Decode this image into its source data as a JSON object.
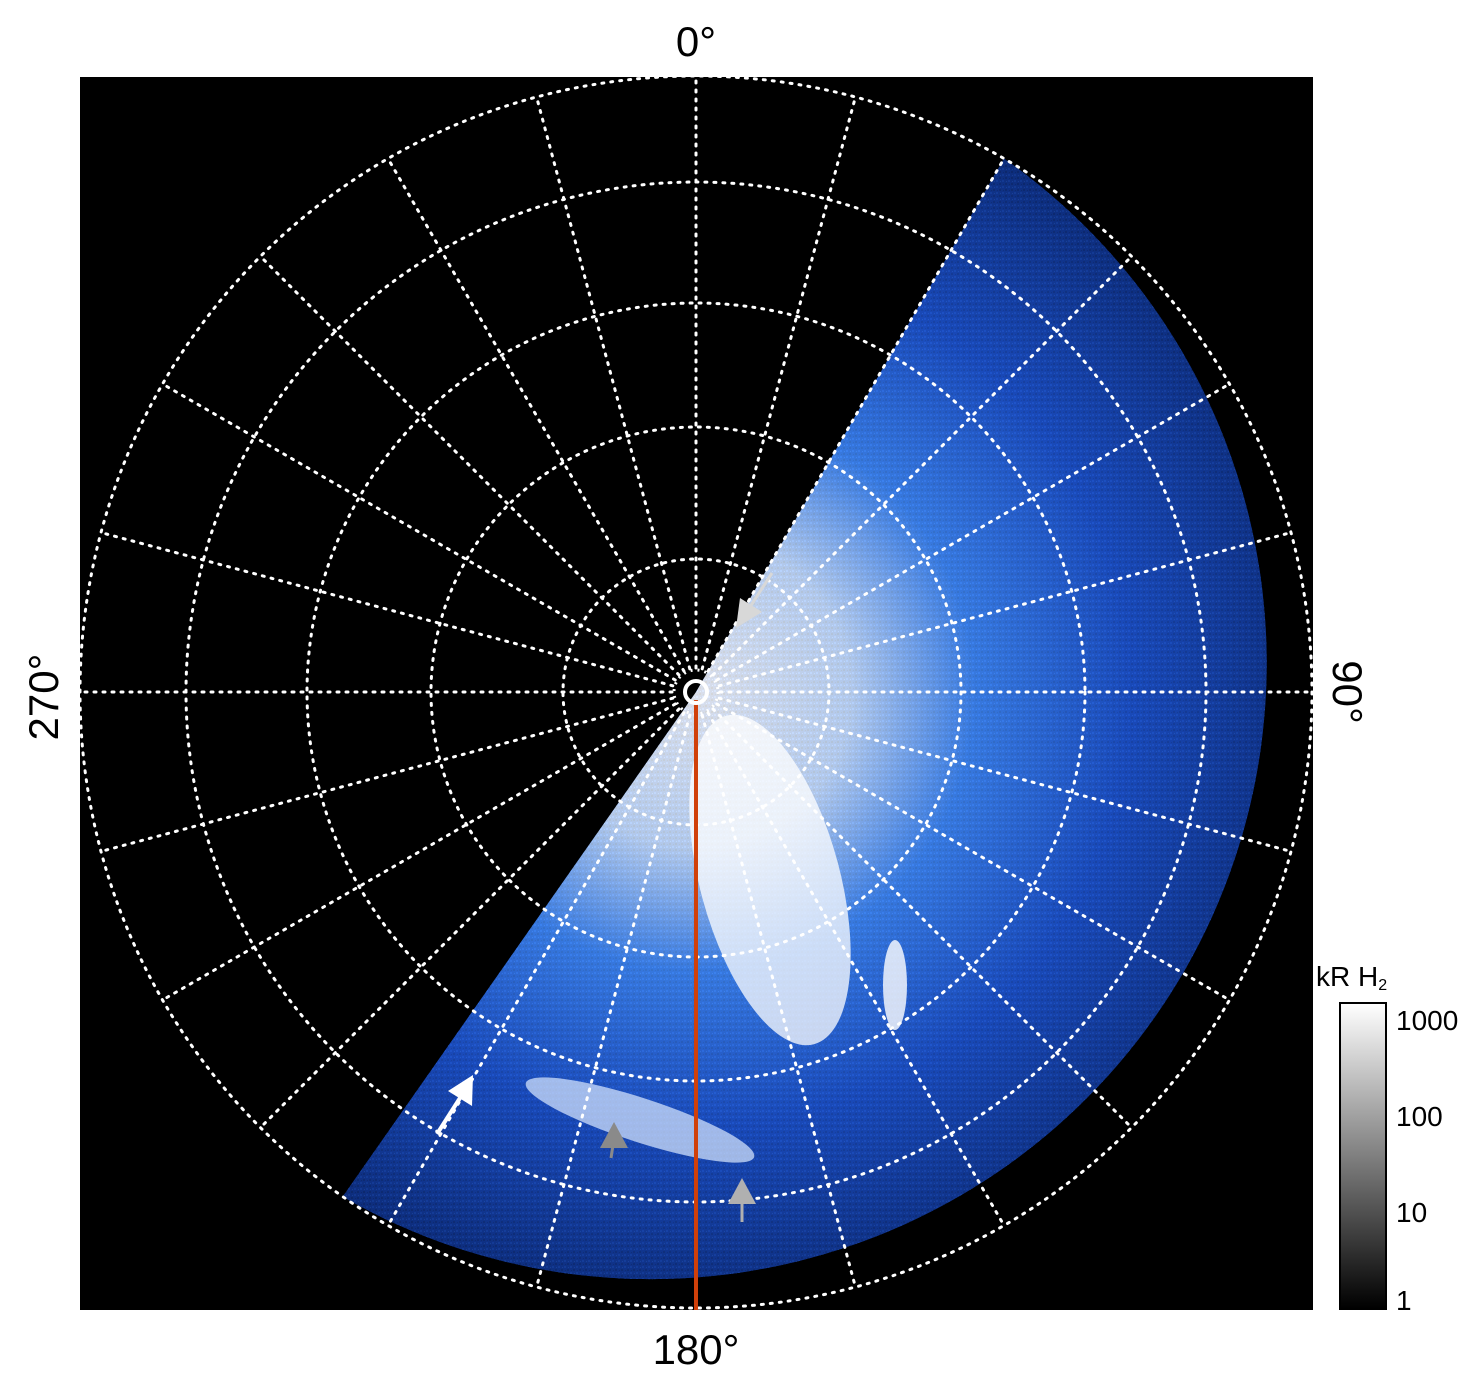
{
  "chart_data": {
    "type": "heatmap",
    "projection": "polar",
    "angle_labels": {
      "top": "0°",
      "right": "90°",
      "bottom": "180°",
      "left": "270°"
    },
    "angular_grid_step_deg": 15,
    "radial_grid_rings": 5,
    "grid": true,
    "grid_style": "dotted white",
    "colorbar": {
      "label": "kR H",
      "label_subscript": "2",
      "scale": "log",
      "range": [
        1,
        1000
      ],
      "ticks": [
        "1000",
        "100",
        "10",
        "1"
      ],
      "colormap": "black-to-white"
    },
    "image_colors": {
      "background": "#000000",
      "emission": "#1e5be0",
      "bright": "#ffffff"
    },
    "observed_sector_deg": [
      30,
      215
    ],
    "reference_line": {
      "angle_deg": 180,
      "color": "#d0400a"
    },
    "annotations": [
      {
        "type": "arrow",
        "color": "#d8d8d8",
        "direction": "down-left"
      },
      {
        "type": "arrow",
        "color": "#ffffff",
        "direction": "up-right"
      },
      {
        "type": "arrow",
        "color": "#8a8a8a",
        "direction": "up"
      },
      {
        "type": "arrow",
        "color": "#b0b0b0",
        "direction": "up"
      }
    ]
  }
}
